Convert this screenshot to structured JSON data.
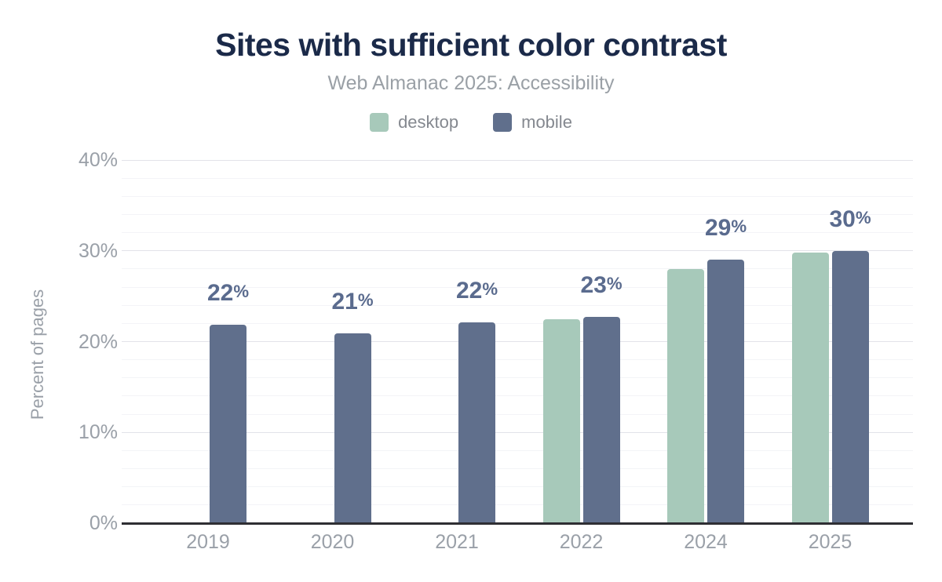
{
  "header": {
    "title": "Sites with sufficient color contrast",
    "subtitle": "Web Almanac 2025: Accessibility"
  },
  "colors": {
    "title": "#1b2a49",
    "desktop": "#a7c9ba",
    "mobile": "#606f8c",
    "bar_label": "#5a6b8e",
    "axis_line": "#2e2e33",
    "tick_text": "#9aa0a8"
  },
  "chart_data": {
    "type": "bar",
    "title": "Sites with sufficient color contrast",
    "subtitle": "Web Almanac 2025: Accessibility",
    "categories": [
      "2019",
      "2020",
      "2021",
      "2022",
      "2024",
      "2025"
    ],
    "series": [
      {
        "name": "desktop",
        "color": "#a7c9ba",
        "values": [
          null,
          null,
          null,
          22.5,
          28.0,
          29.8
        ]
      },
      {
        "name": "mobile",
        "color": "#606f8c",
        "values": [
          21.9,
          20.9,
          22.1,
          22.7,
          29.0,
          30.0
        ]
      }
    ],
    "bar_labels": [
      "22%",
      "21%",
      "22%",
      "23%",
      "29%",
      "30%"
    ],
    "xlabel": "",
    "ylabel": "Percent of pages",
    "ylim": [
      0,
      40
    ],
    "yticks": [
      0,
      10,
      20,
      30,
      40
    ],
    "ytick_labels": [
      "0%",
      "10%",
      "20%",
      "30%",
      "40%"
    ],
    "minor_tick_step": 2,
    "grid": "on",
    "legend_position": "top"
  }
}
